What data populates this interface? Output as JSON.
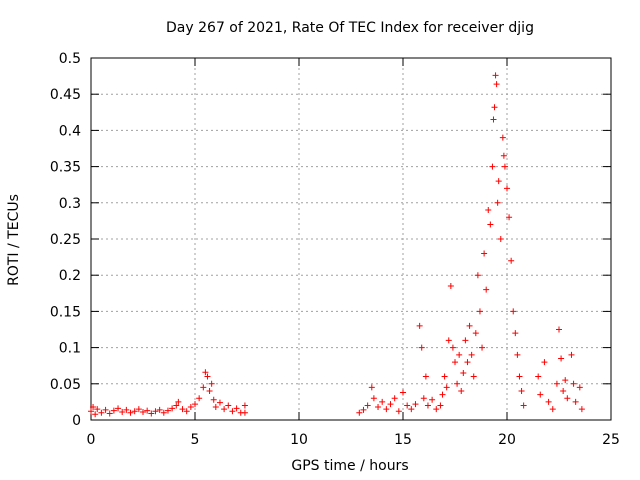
{
  "chart_data": {
    "type": "scatter",
    "title": "Day 267 of 2021, Rate Of TEC Index for receiver djig",
    "xlabel": "GPS time / hours",
    "ylabel": "ROTI / TECUs",
    "xlim": [
      0,
      25
    ],
    "ylim": [
      0,
      0.5
    ],
    "xticks": [
      "0",
      "5",
      "10",
      "15",
      "20",
      "25"
    ],
    "yticks": [
      "0",
      "0.05",
      "0.1",
      "0.15",
      "0.2",
      "0.25",
      "0.3",
      "0.35",
      "0.4",
      "0.45",
      "0.5"
    ],
    "grid": true,
    "marker": "+",
    "color": "#ff0000",
    "series": [
      {
        "points": [
          [
            0.0,
            0.012
          ],
          [
            0.1,
            0.018
          ],
          [
            0.2,
            0.008
          ],
          [
            0.3,
            0.015
          ],
          [
            0.5,
            0.01
          ],
          [
            0.7,
            0.014
          ],
          [
            0.9,
            0.009
          ],
          [
            1.1,
            0.013
          ],
          [
            1.3,
            0.016
          ],
          [
            1.5,
            0.011
          ],
          [
            1.7,
            0.014
          ],
          [
            1.9,
            0.01
          ],
          [
            2.1,
            0.012
          ],
          [
            2.3,
            0.015
          ],
          [
            2.5,
            0.011
          ],
          [
            2.7,
            0.013
          ],
          [
            2.9,
            0.009
          ],
          [
            3.1,
            0.012
          ],
          [
            3.3,
            0.014
          ],
          [
            3.5,
            0.01
          ],
          [
            3.7,
            0.013
          ],
          [
            3.9,
            0.016
          ],
          [
            4.1,
            0.02
          ],
          [
            4.2,
            0.025
          ],
          [
            4.4,
            0.015
          ],
          [
            4.6,
            0.012
          ],
          [
            4.8,
            0.018
          ],
          [
            5.0,
            0.022
          ],
          [
            5.2,
            0.03
          ],
          [
            5.4,
            0.045
          ],
          [
            5.5,
            0.066
          ],
          [
            5.6,
            0.06
          ],
          [
            5.7,
            0.04
          ],
          [
            5.8,
            0.05
          ],
          [
            5.9,
            0.028
          ],
          [
            6.0,
            0.018
          ],
          [
            6.2,
            0.024
          ],
          [
            6.4,
            0.015
          ],
          [
            6.6,
            0.02
          ],
          [
            6.8,
            0.012
          ],
          [
            7.0,
            0.016
          ],
          [
            7.2,
            0.01
          ],
          [
            7.4,
            0.02
          ],
          [
            7.4,
            0.01
          ],
          [
            12.9,
            0.01
          ],
          [
            13.1,
            0.014
          ],
          [
            13.3,
            0.02
          ],
          [
            13.5,
            0.045
          ],
          [
            13.6,
            0.03
          ],
          [
            13.8,
            0.018
          ],
          [
            14.0,
            0.025
          ],
          [
            14.2,
            0.015
          ],
          [
            14.4,
            0.022
          ],
          [
            14.6,
            0.03
          ],
          [
            14.8,
            0.012
          ],
          [
            15.0,
            0.038
          ],
          [
            15.2,
            0.02
          ],
          [
            15.4,
            0.015
          ],
          [
            15.6,
            0.022
          ],
          [
            15.8,
            0.13
          ],
          [
            15.9,
            0.1
          ],
          [
            16.0,
            0.03
          ],
          [
            16.1,
            0.06
          ],
          [
            16.2,
            0.02
          ],
          [
            16.4,
            0.028
          ],
          [
            16.6,
            0.015
          ],
          [
            16.8,
            0.02
          ],
          [
            16.9,
            0.035
          ],
          [
            17.0,
            0.06
          ],
          [
            17.1,
            0.045
          ],
          [
            17.2,
            0.11
          ],
          [
            17.3,
            0.185
          ],
          [
            17.4,
            0.1
          ],
          [
            17.5,
            0.08
          ],
          [
            17.6,
            0.05
          ],
          [
            17.7,
            0.09
          ],
          [
            17.8,
            0.04
          ],
          [
            17.9,
            0.065
          ],
          [
            18.0,
            0.11
          ],
          [
            18.1,
            0.08
          ],
          [
            18.2,
            0.13
          ],
          [
            18.3,
            0.09
          ],
          [
            18.4,
            0.06
          ],
          [
            18.5,
            0.12
          ],
          [
            18.6,
            0.2
          ],
          [
            18.7,
            0.15
          ],
          [
            18.8,
            0.1
          ],
          [
            18.9,
            0.23
          ],
          [
            19.0,
            0.18
          ],
          [
            19.1,
            0.29
          ],
          [
            19.2,
            0.27
          ],
          [
            19.3,
            0.35
          ],
          [
            19.35,
            0.415
          ],
          [
            19.4,
            0.432
          ],
          [
            19.45,
            0.476
          ],
          [
            19.5,
            0.464
          ],
          [
            19.55,
            0.3
          ],
          [
            19.6,
            0.33
          ],
          [
            19.7,
            0.25
          ],
          [
            19.8,
            0.39
          ],
          [
            19.85,
            0.365
          ],
          [
            19.9,
            0.35
          ],
          [
            20.0,
            0.32
          ],
          [
            20.1,
            0.28
          ],
          [
            20.2,
            0.22
          ],
          [
            20.3,
            0.15
          ],
          [
            20.4,
            0.12
          ],
          [
            20.5,
            0.09
          ],
          [
            20.6,
            0.06
          ],
          [
            20.7,
            0.04
          ],
          [
            20.8,
            0.02
          ],
          [
            21.5,
            0.06
          ],
          [
            21.6,
            0.035
          ],
          [
            21.8,
            0.08
          ],
          [
            22.0,
            0.025
          ],
          [
            22.2,
            0.015
          ],
          [
            22.4,
            0.05
          ],
          [
            22.5,
            0.125
          ],
          [
            22.6,
            0.085
          ],
          [
            22.7,
            0.04
          ],
          [
            22.8,
            0.055
          ],
          [
            22.9,
            0.03
          ],
          [
            23.1,
            0.09
          ],
          [
            23.2,
            0.05
          ],
          [
            23.3,
            0.025
          ],
          [
            23.5,
            0.045
          ],
          [
            23.6,
            0.015
          ]
        ]
      }
    ]
  }
}
